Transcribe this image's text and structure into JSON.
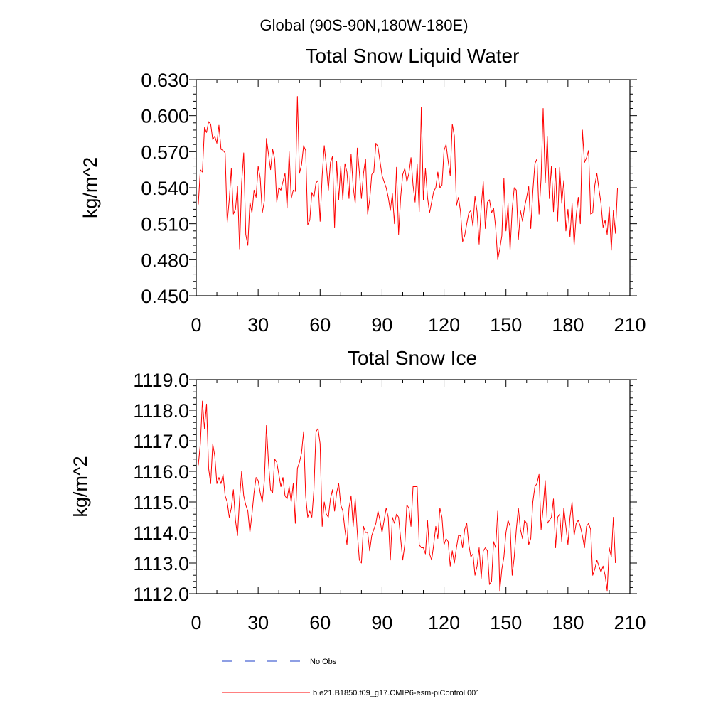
{
  "figure": {
    "header": "Global (90S-90N,180W-180E)"
  },
  "chart_data": [
    {
      "type": "line",
      "title": "Total Snow Liquid Water",
      "xlabel": "",
      "ylabel": "kg/m^2",
      "xlim": [
        0,
        210
      ],
      "ylim": [
        0.45,
        0.63
      ],
      "x_ticks": [
        "0",
        "30",
        "60",
        "90",
        "120",
        "150",
        "180",
        "210"
      ],
      "y_ticks": [
        "0.450",
        "0.480",
        "0.510",
        "0.540",
        "0.570",
        "0.600",
        "0.630"
      ],
      "grid": false,
      "series": [
        {
          "name": "b.e21.B1850.f09_g17.CMIP6-esm-piControl.001",
          "color": "#ff0000",
          "x_start": 1,
          "x_step": 1,
          "values": [
            0.526,
            0.555,
            0.553,
            0.59,
            0.586,
            0.595,
            0.593,
            0.58,
            0.583,
            0.577,
            0.592,
            0.572,
            0.571,
            0.569,
            0.511,
            0.53,
            0.556,
            0.518,
            0.522,
            0.541,
            0.489,
            0.544,
            0.569,
            0.501,
            0.492,
            0.528,
            0.519,
            0.538,
            0.532,
            0.558,
            0.548,
            0.519,
            0.529,
            0.581,
            0.568,
            0.555,
            0.572,
            0.564,
            0.528,
            0.54,
            0.538,
            0.545,
            0.552,
            0.523,
            0.57,
            0.531,
            0.538,
            0.537,
            0.616,
            0.552,
            0.559,
            0.575,
            0.571,
            0.509,
            0.513,
            0.536,
            0.532,
            0.544,
            0.546,
            0.512,
            0.55,
            0.575,
            0.559,
            0.538,
            0.561,
            0.566,
            0.507,
            0.562,
            0.53,
            0.558,
            0.53,
            0.56,
            0.553,
            0.531,
            0.568,
            0.541,
            0.527,
            0.573,
            0.553,
            0.531,
            0.552,
            0.564,
            0.518,
            0.53,
            0.551,
            0.553,
            0.577,
            0.574,
            0.562,
            0.55,
            0.545,
            0.54,
            0.532,
            0.521,
            0.535,
            0.51,
            0.557,
            0.501,
            0.532,
            0.551,
            0.556,
            0.545,
            0.552,
            0.565,
            0.542,
            0.528,
            0.56,
            0.52,
            0.607,
            0.53,
            0.556,
            0.532,
            0.519,
            0.528,
            0.537,
            0.54,
            0.553,
            0.54,
            0.542,
            0.571,
            0.576,
            0.562,
            0.55,
            0.593,
            0.583,
            0.525,
            0.532,
            0.52,
            0.495,
            0.5,
            0.51,
            0.519,
            0.521,
            0.508,
            0.533,
            0.52,
            0.493,
            0.524,
            0.545,
            0.506,
            0.528,
            0.53,
            0.519,
            0.523,
            0.507,
            0.48,
            0.489,
            0.5,
            0.548,
            0.504,
            0.527,
            0.488,
            0.522,
            0.54,
            0.538,
            0.497,
            0.521,
            0.512,
            0.524,
            0.532,
            0.541,
            0.506,
            0.537,
            0.56,
            0.564,
            0.518,
            0.548,
            0.606,
            0.544,
            0.583,
            0.531,
            0.558,
            0.52,
            0.556,
            0.512,
            0.557,
            0.527,
            0.546,
            0.504,
            0.522,
            0.499,
            0.527,
            0.492,
            0.517,
            0.532,
            0.51,
            0.588,
            0.561,
            0.565,
            0.571,
            0.518,
            0.519,
            0.542,
            0.552,
            0.539,
            0.527,
            0.507,
            0.513,
            0.501,
            0.524,
            0.488,
            0.521,
            0.502,
            0.54
          ]
        }
      ]
    },
    {
      "type": "line",
      "title": "Total Snow Ice",
      "xlabel": "",
      "ylabel": "kg/m^2",
      "xlim": [
        0,
        210
      ],
      "ylim": [
        1112.0,
        1119.0
      ],
      "x_ticks": [
        "0",
        "30",
        "60",
        "90",
        "120",
        "150",
        "180",
        "210"
      ],
      "y_ticks": [
        "1112.0",
        "1113.0",
        "1114.0",
        "1115.0",
        "1116.0",
        "1117.0",
        "1118.0",
        "1119.0"
      ],
      "grid": false,
      "series": [
        {
          "name": "b.e21.B1850.f09_g17.CMIP6-esm-piControl.001",
          "color": "#ff0000",
          "x_start": 1,
          "x_step": 1,
          "values": [
            1116.2,
            1116.9,
            1118.3,
            1117.4,
            1118.2,
            1116.1,
            1115.6,
            1116.9,
            1116.5,
            1115.6,
            1115.8,
            1115.6,
            1115.9,
            1115.2,
            1115.0,
            1114.5,
            1114.8,
            1115.4,
            1114.4,
            1113.9,
            1115.1,
            1116.0,
            1115.2,
            1114.9,
            1114.7,
            1114.0,
            1114.6,
            1115.3,
            1115.8,
            1115.7,
            1115.3,
            1115.0,
            1115.7,
            1117.5,
            1116.3,
            1115.4,
            1115.3,
            1116.4,
            1116.3,
            1115.9,
            1115.5,
            1115.8,
            1115.2,
            1115.1,
            1115.5,
            1115.0,
            1115.6,
            1114.3,
            1116.1,
            1116.3,
            1116.6,
            1117.3,
            1115.2,
            1114.5,
            1114.7,
            1114.5,
            1115.4,
            1117.3,
            1117.4,
            1116.9,
            1114.2,
            1115.0,
            1114.6,
            1114.5,
            1115.1,
            1115.4,
            1114.7,
            1115.3,
            1115.6,
            1114.9,
            1114.7,
            1114.1,
            1113.6,
            1114.8,
            1115.2,
            1114.2,
            1115.1,
            1114.0,
            1113.1,
            1113.0,
            1114.2,
            1114.0,
            1114.0,
            1113.4,
            1113.9,
            1114.1,
            1114.3,
            1114.7,
            1114.4,
            1114.0,
            1114.4,
            1114.8,
            1114.5,
            1113.1,
            1114.5,
            1114.3,
            1114.6,
            1114.5,
            1113.8,
            1113.1,
            1113.6,
            1114.9,
            1114.8,
            1114.2,
            1115.5,
            1115.5,
            1115.5,
            1113.6,
            1113.5,
            1113.5,
            1113.3,
            1114.4,
            1113.3,
            1113.1,
            1113.6,
            1114.2,
            1113.8,
            1114.8,
            1114.5,
            1113.6,
            1113.8,
            1113.7,
            1112.9,
            1113.4,
            1113.0,
            1113.5,
            1113.9,
            1113.9,
            1113.5,
            1114.1,
            1114.3,
            1113.6,
            1113.2,
            1113.3,
            1112.6,
            1112.9,
            1113.5,
            1112.5,
            1113.4,
            1113.5,
            1113.4,
            1112.3,
            1112.4,
            1113.7,
            1113.5,
            1114.7,
            1112.1,
            1112.8,
            1113.2,
            1114.0,
            1114.4,
            1114.2,
            1112.6,
            1113.2,
            1114.1,
            1114.8,
            1114.1,
            1113.8,
            1114.4,
            1114.3,
            1113.6,
            1113.8,
            1115.0,
            1115.5,
            1115.6,
            1115.9,
            1114.1,
            1114.8,
            1115.7,
            1114.3,
            1114.4,
            1114.5,
            1115.1,
            1113.5,
            1114.5,
            1114.6,
            1113.7,
            1114.8,
            1114.2,
            1113.6,
            1114.5,
            1115.0,
            1113.9,
            1114.3,
            1114.4,
            1114.2,
            1113.9,
            1113.5,
            1114.2,
            1114.3,
            1114.1,
            1112.6,
            1112.8,
            1113.1,
            1112.9,
            1112.7,
            1112.9,
            1112.6,
            1112.1,
            1113.5,
            1113.2,
            1114.5,
            1113.0
          ]
        }
      ]
    }
  ],
  "legend": [
    {
      "label": "No Obs",
      "color": "#1e3fc8",
      "style": "dashed"
    },
    {
      "label": "b.e21.B1850.f09_g17.CMIP6-esm-piControl.001",
      "color": "#ff0000",
      "style": "solid"
    }
  ]
}
